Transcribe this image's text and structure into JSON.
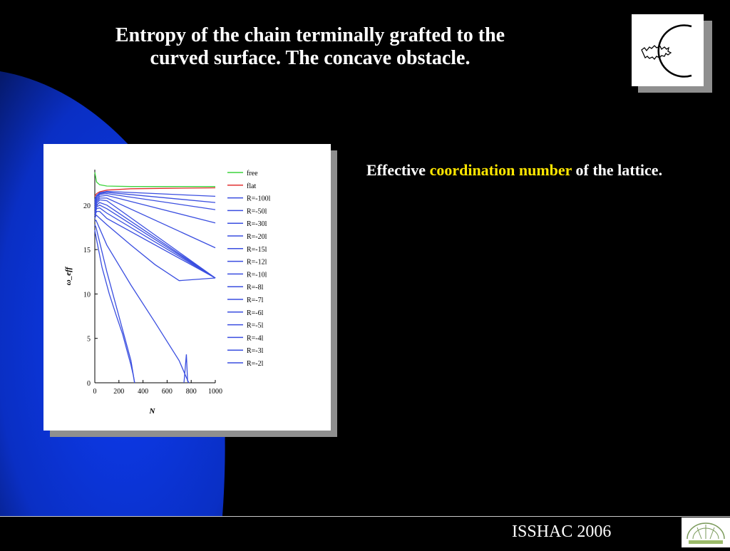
{
  "slide": {
    "title_line1": "Entropy of the chain terminally grafted to the",
    "title_line2": "curved surface. The concave obstacle.",
    "caption_part1": "Effective ",
    "caption_highlight": "coordination number",
    "caption_part2": " of the lattice.",
    "footer": "ISSHAC 2006"
  },
  "colors": {
    "background": "#000000",
    "blue_shape": "#0a34e0",
    "highlight": "#ffe600",
    "title": "#ffffff"
  },
  "chart_data": {
    "type": "line",
    "xlabel": "N",
    "ylabel": "ω_eff",
    "xlim": [
      0,
      1000
    ],
    "ylim": [
      0,
      24
    ],
    "xticks": [
      0,
      200,
      400,
      600,
      800,
      1000
    ],
    "yticks": [
      0,
      5,
      10,
      15,
      20
    ],
    "legend_position": "right",
    "series": [
      {
        "name": "free",
        "color": "#3cd43c",
        "x": [
          0,
          15,
          40,
          100,
          300,
          600,
          1000
        ],
        "y": [
          23.7,
          22.6,
          22.3,
          22.15,
          22.1,
          22.1,
          22.1
        ]
      },
      {
        "name": "flat",
        "color": "#e23030",
        "x": [
          0,
          15,
          40,
          100,
          300,
          600,
          1000
        ],
        "y": [
          21.0,
          21.3,
          21.5,
          21.7,
          21.85,
          21.9,
          21.95
        ]
      },
      {
        "name": "R=-100l",
        "color": "#3a4ee0",
        "x": [
          0,
          15,
          40,
          100,
          1000
        ],
        "y": [
          20.6,
          21.1,
          21.4,
          21.55,
          21.0
        ]
      },
      {
        "name": "R=-50l",
        "color": "#3a4ee0",
        "x": [
          0,
          15,
          40,
          100,
          1000
        ],
        "y": [
          20.4,
          21.0,
          21.3,
          21.45,
          20.3
        ]
      },
      {
        "name": "R=-30l",
        "color": "#3a4ee0",
        "x": [
          0,
          15,
          40,
          100,
          1000
        ],
        "y": [
          20.2,
          20.8,
          21.2,
          21.3,
          19.5
        ]
      },
      {
        "name": "R=-20l",
        "color": "#3a4ee0",
        "x": [
          0,
          15,
          40,
          100,
          1000
        ],
        "y": [
          20.0,
          20.6,
          21.0,
          21.1,
          18.0
        ]
      },
      {
        "name": "R=-15l",
        "color": "#3a4ee0",
        "x": [
          0,
          15,
          40,
          100,
          1000
        ],
        "y": [
          19.8,
          20.4,
          20.8,
          20.8,
          15.2
        ]
      },
      {
        "name": "R=-12l",
        "color": "#3a4ee0",
        "x": [
          0,
          15,
          40,
          100,
          1000
        ],
        "y": [
          19.6,
          20.2,
          20.6,
          20.5,
          11.8
        ]
      },
      {
        "name": "R=-10l",
        "color": "#3a4ee0",
        "x": [
          0,
          15,
          40,
          100,
          1000
        ],
        "y": [
          19.4,
          20.0,
          20.3,
          20.0,
          11.8
        ]
      },
      {
        "name": "R=-8l",
        "color": "#3a4ee0",
        "x": [
          0,
          15,
          40,
          100,
          1000
        ],
        "y": [
          19.2,
          19.8,
          20.0,
          19.6,
          11.8
        ]
      },
      {
        "name": "R=-7l",
        "color": "#3a4ee0",
        "x": [
          0,
          15,
          40,
          100,
          1000
        ],
        "y": [
          19.0,
          19.6,
          19.7,
          19.1,
          11.8
        ]
      },
      {
        "name": "R=-6l",
        "color": "#3a4ee0",
        "x": [
          0,
          15,
          40,
          100,
          1000
        ],
        "y": [
          18.8,
          19.3,
          19.3,
          18.5,
          11.8
        ]
      },
      {
        "name": "R=-5l",
        "color": "#3a4ee0",
        "x": [
          0,
          10,
          100,
          300,
          500,
          700,
          1000
        ],
        "y": [
          18.5,
          18.9,
          17.8,
          15.5,
          13.3,
          11.5,
          11.8
        ]
      },
      {
        "name": "R=-4l",
        "color": "#3a4ee0",
        "x": [
          0,
          10,
          100,
          300,
          500,
          700,
          760,
          780
        ],
        "y": [
          18.2,
          18.3,
          15.5,
          11.0,
          6.8,
          2.5,
          0.6,
          0
        ]
      },
      {
        "name": "R=-3l",
        "color": "#3a4ee0",
        "x": [
          0,
          10,
          100,
          200,
          300,
          330
        ],
        "y": [
          17.8,
          17.5,
          12.5,
          7.5,
          2.5,
          0
        ]
      },
      {
        "name": "R=-2l",
        "color": "#3a4ee0",
        "x": [
          0,
          5,
          60,
          120,
          180,
          230,
          270,
          300,
          320,
          330
        ],
        "y": [
          17.2,
          16.8,
          13.0,
          10.0,
          7.5,
          5.5,
          3.5,
          2.0,
          0.8,
          0
        ]
      }
    ],
    "spike": {
      "x": [
        740,
        760,
        770,
        780
      ],
      "y": [
        0,
        3.2,
        0.2,
        0
      ]
    }
  }
}
